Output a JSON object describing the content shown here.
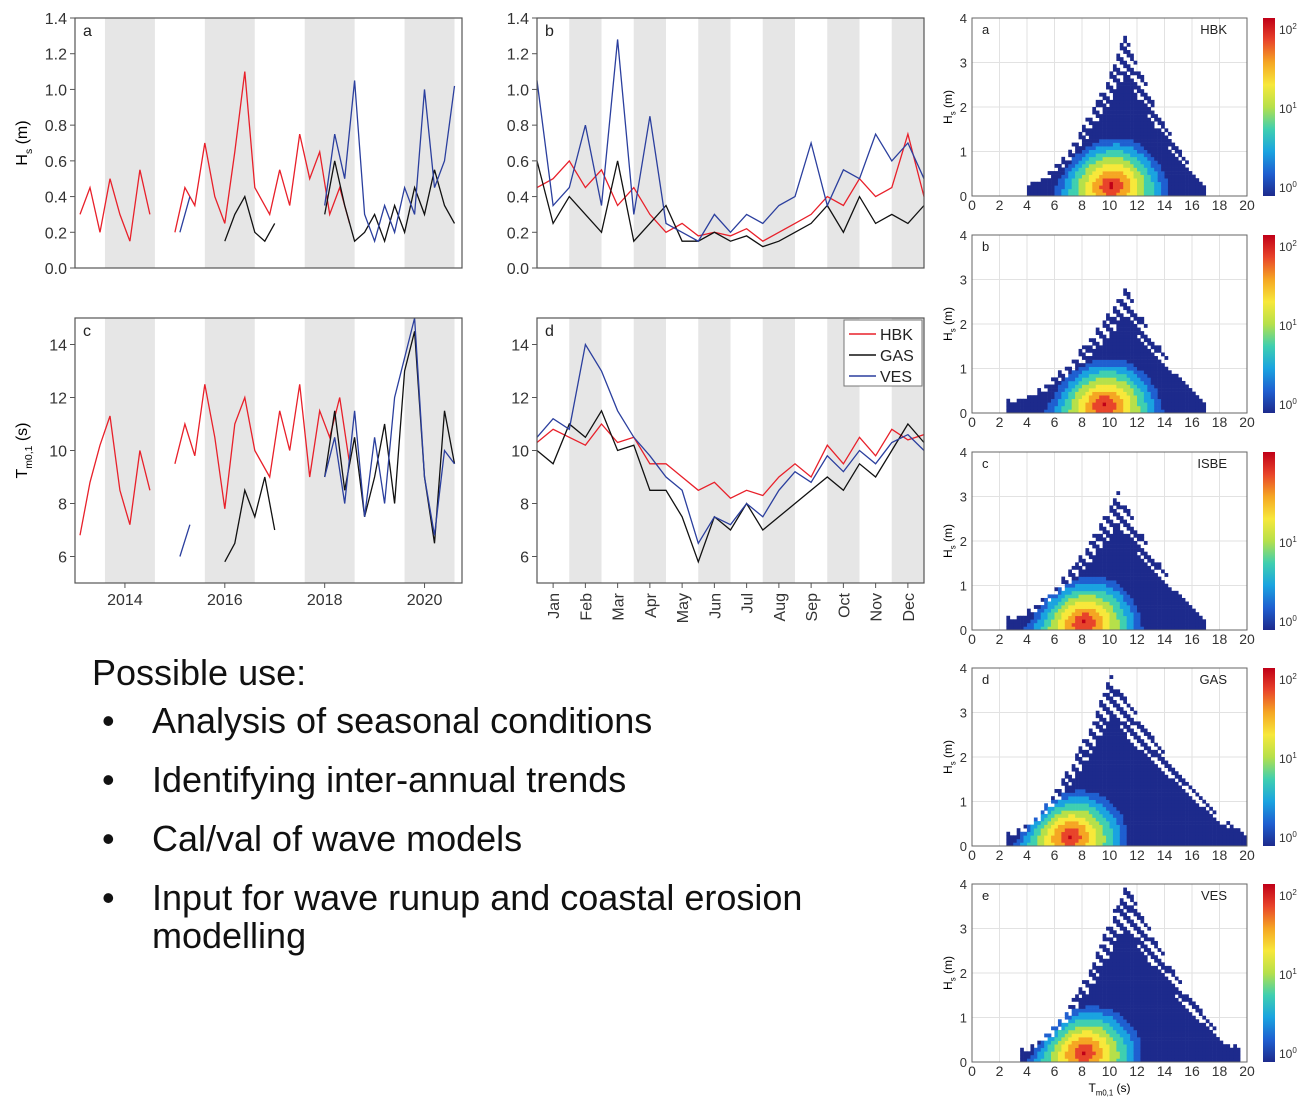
{
  "colors": {
    "HBK": "#e8202a",
    "GAS": "#111111",
    "VES": "#2b3f9e",
    "shade": "#e6e6e6",
    "colormap": [
      "#1d2a8c",
      "#1f5fd0",
      "#1aa3e0",
      "#3fcfb0",
      "#b6e04a",
      "#f7e83a",
      "#f5a623",
      "#e8442a",
      "#c00018"
    ]
  },
  "uses": {
    "title": "Possible use:",
    "items": [
      "Analysis of seasonal conditions",
      "Identifying inter-annual trends",
      "Cal/val of wave models",
      "Input for wave runup and coastal erosion modelling"
    ]
  },
  "chart_data": [
    {
      "id": "a",
      "type": "line",
      "panel_label": "a",
      "ylabel": "H_s (m)",
      "xlabel": "",
      "xlim": [
        2013.0,
        2020.75
      ],
      "ylim": [
        0,
        1.4
      ],
      "yticks": [
        0.0,
        0.2,
        0.4,
        0.6,
        0.8,
        1.0,
        1.2,
        1.4
      ],
      "ytick_labels": [
        "0.0",
        "0.2",
        "0.4",
        "0.6",
        "0.8",
        "1.0",
        "1.2",
        "1.4"
      ],
      "xticks": [],
      "xtick_labels": [],
      "shaded_x_ranges": [
        [
          2013.6,
          2014.6
        ],
        [
          2015.6,
          2016.6
        ],
        [
          2017.6,
          2018.6
        ],
        [
          2019.6,
          2020.6
        ]
      ],
      "series": [
        {
          "name": "HBK",
          "values_x": [
            2013.1,
            2013.3,
            2013.5,
            2013.7,
            2013.9,
            2014.1,
            2014.3,
            2014.5,
            2015.0,
            2015.2,
            2015.4,
            2015.6,
            2015.8,
            2016.0,
            2016.2,
            2016.4,
            2016.6,
            2016.9,
            2017.1,
            2017.3,
            2017.5,
            2017.7,
            2017.9,
            2018.1,
            2018.3,
            2018.5
          ],
          "values_y": [
            0.3,
            0.45,
            0.2,
            0.5,
            0.3,
            0.15,
            0.55,
            0.3,
            0.2,
            0.45,
            0.35,
            0.7,
            0.4,
            0.25,
            0.65,
            1.1,
            0.45,
            0.3,
            0.55,
            0.35,
            0.75,
            0.5,
            0.65,
            0.3,
            0.45,
            0.25
          ]
        },
        {
          "name": "GAS",
          "values_x": [
            2016.0,
            2016.2,
            2016.4,
            2016.6,
            2016.8,
            2017.0,
            2018.0,
            2018.2,
            2018.4,
            2018.6,
            2018.8,
            2019.0,
            2019.2,
            2019.4,
            2019.6,
            2019.8,
            2020.0,
            2020.2,
            2020.4,
            2020.6
          ],
          "values_y": [
            0.15,
            0.3,
            0.4,
            0.2,
            0.15,
            0.25,
            0.3,
            0.6,
            0.35,
            0.15,
            0.2,
            0.3,
            0.15,
            0.35,
            0.2,
            0.45,
            0.3,
            0.55,
            0.35,
            0.25
          ]
        },
        {
          "name": "VES",
          "values_x": [
            2015.1,
            2015.3,
            2018.0,
            2018.2,
            2018.4,
            2018.6,
            2018.8,
            2019.0,
            2019.2,
            2019.4,
            2019.6,
            2019.8,
            2020.0,
            2020.2,
            2020.4,
            2020.6
          ],
          "values_y": [
            0.2,
            0.4,
            0.35,
            0.75,
            0.5,
            1.05,
            0.3,
            0.15,
            0.35,
            0.2,
            0.45,
            0.3,
            1.0,
            0.45,
            0.6,
            1.02
          ]
        }
      ]
    },
    {
      "id": "b",
      "type": "line",
      "panel_label": "b",
      "ylabel": "",
      "xlabel": "",
      "xlim": [
        0,
        12
      ],
      "ylim": [
        0,
        1.4
      ],
      "yticks": [
        0.0,
        0.2,
        0.4,
        0.6,
        0.8,
        1.0,
        1.2,
        1.4
      ],
      "ytick_labels": [
        "0.0",
        "0.2",
        "0.4",
        "0.6",
        "0.8",
        "1.0",
        "1.2",
        "1.4"
      ],
      "xticks": [],
      "xtick_labels": [],
      "shaded_x_ranges": [
        [
          1,
          2
        ],
        [
          3,
          4
        ],
        [
          5,
          6
        ],
        [
          7,
          8
        ],
        [
          9,
          10
        ],
        [
          11,
          12
        ]
      ],
      "series": [
        {
          "name": "HBK",
          "values_x": [
            0,
            0.5,
            1,
            1.5,
            2,
            2.5,
            3,
            3.5,
            4,
            4.5,
            5,
            5.5,
            6,
            6.5,
            7,
            7.5,
            8,
            8.5,
            9,
            9.5,
            10,
            10.5,
            11,
            11.5,
            12
          ],
          "values_y": [
            0.45,
            0.5,
            0.6,
            0.45,
            0.55,
            0.35,
            0.45,
            0.3,
            0.2,
            0.25,
            0.18,
            0.2,
            0.18,
            0.22,
            0.15,
            0.2,
            0.25,
            0.3,
            0.4,
            0.35,
            0.5,
            0.4,
            0.45,
            0.75,
            0.4
          ]
        },
        {
          "name": "GAS",
          "values_x": [
            0,
            0.5,
            1,
            1.5,
            2,
            2.5,
            3,
            3.5,
            4,
            4.5,
            5,
            5.5,
            6,
            6.5,
            7,
            7.5,
            8,
            8.5,
            9,
            9.5,
            10,
            10.5,
            11,
            11.5,
            12
          ],
          "values_y": [
            0.6,
            0.25,
            0.4,
            0.3,
            0.2,
            0.6,
            0.15,
            0.25,
            0.35,
            0.15,
            0.15,
            0.2,
            0.15,
            0.18,
            0.12,
            0.15,
            0.2,
            0.25,
            0.35,
            0.2,
            0.4,
            0.25,
            0.3,
            0.25,
            0.35
          ]
        },
        {
          "name": "VES",
          "values_x": [
            0,
            0.5,
            1,
            1.5,
            2,
            2.5,
            3,
            3.5,
            4,
            4.5,
            5,
            5.5,
            6,
            6.5,
            7,
            7.5,
            8,
            8.5,
            9,
            9.5,
            10,
            10.5,
            11,
            11.5,
            12
          ],
          "values_y": [
            1.05,
            0.35,
            0.45,
            0.8,
            0.35,
            1.28,
            0.3,
            0.85,
            0.25,
            0.2,
            0.15,
            0.3,
            0.2,
            0.3,
            0.25,
            0.35,
            0.4,
            0.7,
            0.35,
            0.55,
            0.5,
            0.75,
            0.6,
            0.7,
            0.5
          ]
        }
      ]
    },
    {
      "id": "c",
      "type": "line",
      "panel_label": "c",
      "ylabel": "T_m0,1 (s)",
      "xlabel": "",
      "xlim": [
        2013.0,
        2020.75
      ],
      "ylim": [
        5,
        15
      ],
      "yticks": [
        6,
        8,
        10,
        12,
        14
      ],
      "ytick_labels": [
        "6",
        "8",
        "10",
        "12",
        "14"
      ],
      "xticks": [
        2014,
        2016,
        2018,
        2020
      ],
      "xtick_labels": [
        "2014",
        "2016",
        "2018",
        "2020"
      ],
      "shaded_x_ranges": [
        [
          2013.6,
          2014.6
        ],
        [
          2015.6,
          2016.6
        ],
        [
          2017.6,
          2018.6
        ],
        [
          2019.6,
          2020.6
        ]
      ],
      "series": [
        {
          "name": "HBK",
          "values_x": [
            2013.1,
            2013.3,
            2013.5,
            2013.7,
            2013.9,
            2014.1,
            2014.3,
            2014.5,
            2015.0,
            2015.2,
            2015.4,
            2015.6,
            2015.8,
            2016.0,
            2016.2,
            2016.4,
            2016.6,
            2016.9,
            2017.1,
            2017.3,
            2017.5,
            2017.7,
            2017.9,
            2018.1,
            2018.3,
            2018.5
          ],
          "values_y": [
            6.8,
            8.8,
            10.2,
            11.3,
            8.5,
            7.2,
            10,
            8.5,
            9.5,
            11,
            9.8,
            12.5,
            10.5,
            7.8,
            11,
            12,
            10,
            9,
            11.5,
            10,
            12.5,
            9,
            11.5,
            10.5,
            12,
            9.5
          ]
        },
        {
          "name": "GAS",
          "values_x": [
            2016.0,
            2016.2,
            2016.4,
            2016.6,
            2016.8,
            2017.0,
            2018.0,
            2018.2,
            2018.4,
            2018.6,
            2018.8,
            2019.0,
            2019.2,
            2019.4,
            2019.6,
            2019.8,
            2020.0,
            2020.2,
            2020.4,
            2020.6
          ],
          "values_y": [
            5.8,
            6.5,
            8.5,
            7.5,
            9,
            7,
            9,
            11.5,
            8.5,
            10.5,
            7.5,
            9,
            11,
            8,
            13,
            14.5,
            9,
            6.5,
            11.5,
            9.5
          ]
        },
        {
          "name": "VES",
          "values_x": [
            2015.1,
            2015.3,
            2018.0,
            2018.2,
            2018.4,
            2018.6,
            2018.8,
            2019.0,
            2019.2,
            2019.4,
            2019.6,
            2019.8,
            2020.0,
            2020.2,
            2020.4,
            2020.6
          ],
          "values_y": [
            6,
            7.2,
            9,
            10.5,
            8,
            11.5,
            7.5,
            10.5,
            8,
            12,
            13.5,
            15,
            9,
            6.8,
            10,
            9.5
          ]
        }
      ]
    },
    {
      "id": "d",
      "type": "line",
      "panel_label": "d",
      "ylabel": "",
      "xlabel": "",
      "xlim": [
        0,
        12
      ],
      "ylim": [
        5,
        15
      ],
      "yticks": [
        6,
        8,
        10,
        12,
        14
      ],
      "ytick_labels": [
        "6",
        "8",
        "10",
        "12",
        "14"
      ],
      "xticks": [
        0.5,
        1.5,
        2.5,
        3.5,
        4.5,
        5.5,
        6.5,
        7.5,
        8.5,
        9.5,
        10.5,
        11.5
      ],
      "xtick_labels": [
        "Jan",
        "Feb",
        "Mar",
        "Apr",
        "May",
        "Jun",
        "Jul",
        "Aug",
        "Sep",
        "Oct",
        "Nov",
        "Dec"
      ],
      "shaded_x_ranges": [
        [
          1,
          2
        ],
        [
          3,
          4
        ],
        [
          5,
          6
        ],
        [
          7,
          8
        ],
        [
          9,
          10
        ],
        [
          11,
          12
        ]
      ],
      "legend": {
        "position": "top-right",
        "entries": [
          "HBK",
          "GAS",
          "VES"
        ]
      },
      "series": [
        {
          "name": "HBK",
          "values_x": [
            0,
            0.5,
            1,
            1.5,
            2,
            2.5,
            3,
            3.5,
            4,
            4.5,
            5,
            5.5,
            6,
            6.5,
            7,
            7.5,
            8,
            8.5,
            9,
            9.5,
            10,
            10.5,
            11,
            11.5,
            12
          ],
          "values_y": [
            10.3,
            10.8,
            10.5,
            10.2,
            11,
            10.3,
            10.5,
            9.5,
            9.5,
            9,
            8.5,
            8.8,
            8.2,
            8.5,
            8.3,
            9,
            9.5,
            9,
            10.2,
            9.5,
            10.5,
            9.8,
            10.8,
            10.4,
            10.6
          ]
        },
        {
          "name": "GAS",
          "values_x": [
            0,
            0.5,
            1,
            1.5,
            2,
            2.5,
            3,
            3.5,
            4,
            4.5,
            5,
            5.5,
            6,
            6.5,
            7,
            7.5,
            8,
            8.5,
            9,
            9.5,
            10,
            10.5,
            11,
            11.5,
            12
          ],
          "values_y": [
            10,
            9.5,
            11,
            10.5,
            11.5,
            10,
            10.2,
            8.5,
            8.5,
            7.5,
            5.8,
            7.5,
            7,
            8,
            7,
            7.5,
            8,
            8.5,
            9,
            8.5,
            9.5,
            9,
            10,
            11,
            10.3
          ]
        },
        {
          "name": "VES",
          "values_x": [
            0,
            0.5,
            1,
            1.5,
            2,
            2.5,
            3,
            3.5,
            4,
            4.5,
            5,
            5.5,
            6,
            6.5,
            7,
            7.5,
            8,
            8.5,
            9,
            9.5,
            10,
            10.5,
            11,
            11.5,
            12
          ],
          "values_y": [
            10.5,
            11.2,
            10.8,
            14,
            13,
            11.5,
            10.5,
            9.8,
            9,
            8.5,
            6.5,
            7.5,
            7.2,
            8,
            7.5,
            8.5,
            9.2,
            8.8,
            9.8,
            9.2,
            10,
            9.5,
            10.3,
            10.6,
            10
          ]
        }
      ]
    },
    {
      "id": "ha",
      "type": "heatmap",
      "panel_label": "a",
      "station": "HBK",
      "ylabel": "H_s (m)",
      "xlabel": "",
      "xlim": [
        0,
        20
      ],
      "ylim": [
        0,
        4
      ],
      "xticks": [
        0,
        2,
        4,
        6,
        8,
        10,
        12,
        14,
        16,
        18,
        20
      ],
      "yticks": [
        0,
        1,
        2,
        3,
        4
      ],
      "colorbar": {
        "scale": "log",
        "ticks": [
          "10^0",
          "10^1",
          "10^2"
        ]
      },
      "peak": {
        "Tm01": 10,
        "Hs": 0.2
      },
      "extent": {
        "T_min": 4,
        "T_max": 17,
        "Hs_max": 3.6,
        "apex_T": 11
      }
    },
    {
      "id": "hb",
      "type": "heatmap",
      "panel_label": "b",
      "station": "",
      "ylabel": "H_s (m)",
      "xlabel": "",
      "xlim": [
        0,
        20
      ],
      "ylim": [
        0,
        4
      ],
      "xticks": [
        0,
        2,
        4,
        6,
        8,
        10,
        12,
        14,
        16,
        18,
        20
      ],
      "yticks": [
        0,
        1,
        2,
        3,
        4
      ],
      "colorbar": {
        "scale": "log",
        "ticks": [
          "10^0",
          "10^1",
          "10^2"
        ]
      },
      "peak": {
        "Tm01": 9.5,
        "Hs": 0.15
      },
      "extent": {
        "T_min": 2.5,
        "T_max": 17,
        "Hs_max": 2.8,
        "apex_T": 11
      }
    },
    {
      "id": "hc",
      "type": "heatmap",
      "panel_label": "c",
      "station": "ISBE",
      "ylabel": "H_s (m)",
      "xlabel": "",
      "xlim": [
        0,
        20
      ],
      "ylim": [
        0,
        4
      ],
      "xticks": [
        0,
        2,
        4,
        6,
        8,
        10,
        12,
        14,
        16,
        18,
        20
      ],
      "yticks": [
        0,
        1,
        2,
        3,
        4
      ],
      "colorbar": {
        "scale": "log",
        "ticks": [
          "10^0",
          "10^1"
        ]
      },
      "peak": {
        "Tm01": 8,
        "Hs": 0.15
      },
      "extent": {
        "T_min": 2.5,
        "T_max": 17,
        "Hs_max": 3.1,
        "apex_T": 10.5
      }
    },
    {
      "id": "hd",
      "type": "heatmap",
      "panel_label": "d",
      "station": "GAS",
      "ylabel": "H_s (m)",
      "xlabel": "",
      "xlim": [
        0,
        20
      ],
      "ylim": [
        0,
        4
      ],
      "xticks": [
        0,
        2,
        4,
        6,
        8,
        10,
        12,
        14,
        16,
        18,
        20
      ],
      "yticks": [
        0,
        1,
        2,
        3,
        4
      ],
      "colorbar": {
        "scale": "log",
        "ticks": [
          "10^0",
          "10^1",
          "10^2"
        ]
      },
      "peak": {
        "Tm01": 7,
        "Hs": 0.2
      },
      "extent": {
        "T_min": 2.5,
        "T_max": 20,
        "Hs_max": 3.8,
        "apex_T": 10
      }
    },
    {
      "id": "he",
      "type": "heatmap",
      "panel_label": "e",
      "station": "VES",
      "ylabel": "H_s (m)",
      "xlabel": "T_m0,1 (s)",
      "xlim": [
        0,
        20
      ],
      "ylim": [
        0,
        4
      ],
      "xticks": [
        0,
        2,
        4,
        6,
        8,
        10,
        12,
        14,
        16,
        18,
        20
      ],
      "yticks": [
        0,
        1,
        2,
        3,
        4
      ],
      "colorbar": {
        "scale": "log",
        "ticks": [
          "10^0",
          "10^1",
          "10^2"
        ]
      },
      "peak": {
        "Tm01": 8,
        "Hs": 0.2
      },
      "extent": {
        "T_min": 3.5,
        "T_max": 19.5,
        "Hs_max": 4.0,
        "apex_T": 11
      }
    }
  ]
}
